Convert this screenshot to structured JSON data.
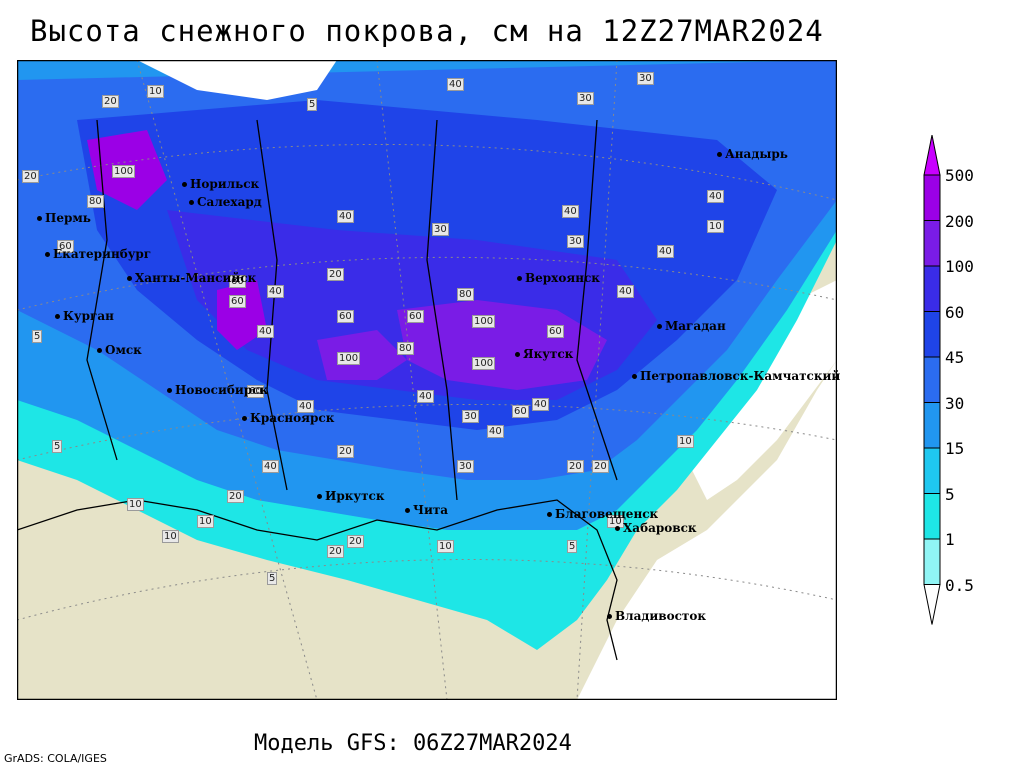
{
  "title": "Высота снежного покрова, см на 12Z27MAR2024",
  "model_line": "Модель GFS: 06Z27MAR2024",
  "credit": "GrADS: COLA/IGES",
  "legend": {
    "levels": [
      "500",
      "200",
      "100",
      "60",
      "45",
      "30",
      "15",
      "5",
      "1",
      "0.5"
    ],
    "colors": [
      "#c800ff",
      "#9b00e6",
      "#7a1ce6",
      "#3a2ce8",
      "#1f44e8",
      "#2b6cf0",
      "#2196f0",
      "#1fc8f0",
      "#1ee6e6",
      "#90f5f5"
    ]
  },
  "cities": [
    {
      "name": "Норильск"
    },
    {
      "name": "Салехард"
    },
    {
      "name": "Пермь"
    },
    {
      "name": "Екатеринбург"
    },
    {
      "name": "Ханты-Мансийск"
    },
    {
      "name": "Курган"
    },
    {
      "name": "Омск"
    },
    {
      "name": "Новосибирск"
    },
    {
      "name": "Красноярск"
    },
    {
      "name": "Иркутск"
    },
    {
      "name": "Чита"
    },
    {
      "name": "Верхоянск"
    },
    {
      "name": "Якутск"
    },
    {
      "name": "Магадан"
    },
    {
      "name": "Анадырь"
    },
    {
      "name": "Петропавловск-Камчатский"
    },
    {
      "name": "Благовещенск"
    },
    {
      "name": "Хабаровск"
    },
    {
      "name": "Владивосток"
    }
  ],
  "contour_labels": [
    "40",
    "30",
    "30",
    "20",
    "10",
    "5",
    "20",
    "100",
    "80",
    "60",
    "40",
    "20",
    "30",
    "40",
    "40",
    "30",
    "40",
    "40",
    "40",
    "40",
    "60",
    "60",
    "40",
    "80",
    "100",
    "100",
    "80",
    "60",
    "60",
    "60",
    "40",
    "40",
    "30",
    "20",
    "10",
    "5",
    "10",
    "20",
    "40",
    "20",
    "10",
    "5",
    "10",
    "20",
    "5",
    "10",
    "10",
    "5",
    "20",
    "40",
    "60",
    "100",
    "60",
    "30",
    "20",
    "10"
  ]
}
